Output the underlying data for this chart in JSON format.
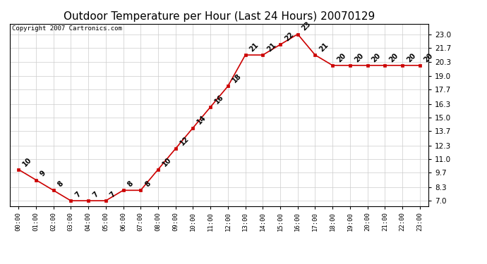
{
  "title": "Outdoor Temperature per Hour (Last 24 Hours) 20070129",
  "copyright": "Copyright 2007 Cartronics.com",
  "hours": [
    "00:00",
    "01:00",
    "02:00",
    "03:00",
    "04:00",
    "05:00",
    "06:00",
    "07:00",
    "08:00",
    "09:00",
    "10:00",
    "11:00",
    "12:00",
    "13:00",
    "14:00",
    "15:00",
    "16:00",
    "17:00",
    "18:00",
    "19:00",
    "20:00",
    "21:00",
    "22:00",
    "23:00"
  ],
  "temperatures": [
    10,
    9,
    8,
    7,
    7,
    7,
    8,
    8,
    10,
    12,
    14,
    16,
    18,
    21,
    21,
    22,
    23,
    21,
    20,
    20,
    20,
    20,
    20,
    20
  ],
  "line_color": "#cc0000",
  "marker_color": "#cc0000",
  "background_color": "#ffffff",
  "grid_color": "#cccccc",
  "yticks": [
    7.0,
    8.3,
    9.7,
    11.0,
    12.3,
    13.7,
    15.0,
    16.3,
    17.7,
    19.0,
    20.3,
    21.7,
    23.0
  ],
  "ylim": [
    6.5,
    24.0
  ],
  "title_fontsize": 11,
  "copyright_fontsize": 6.5,
  "label_fontsize": 7
}
